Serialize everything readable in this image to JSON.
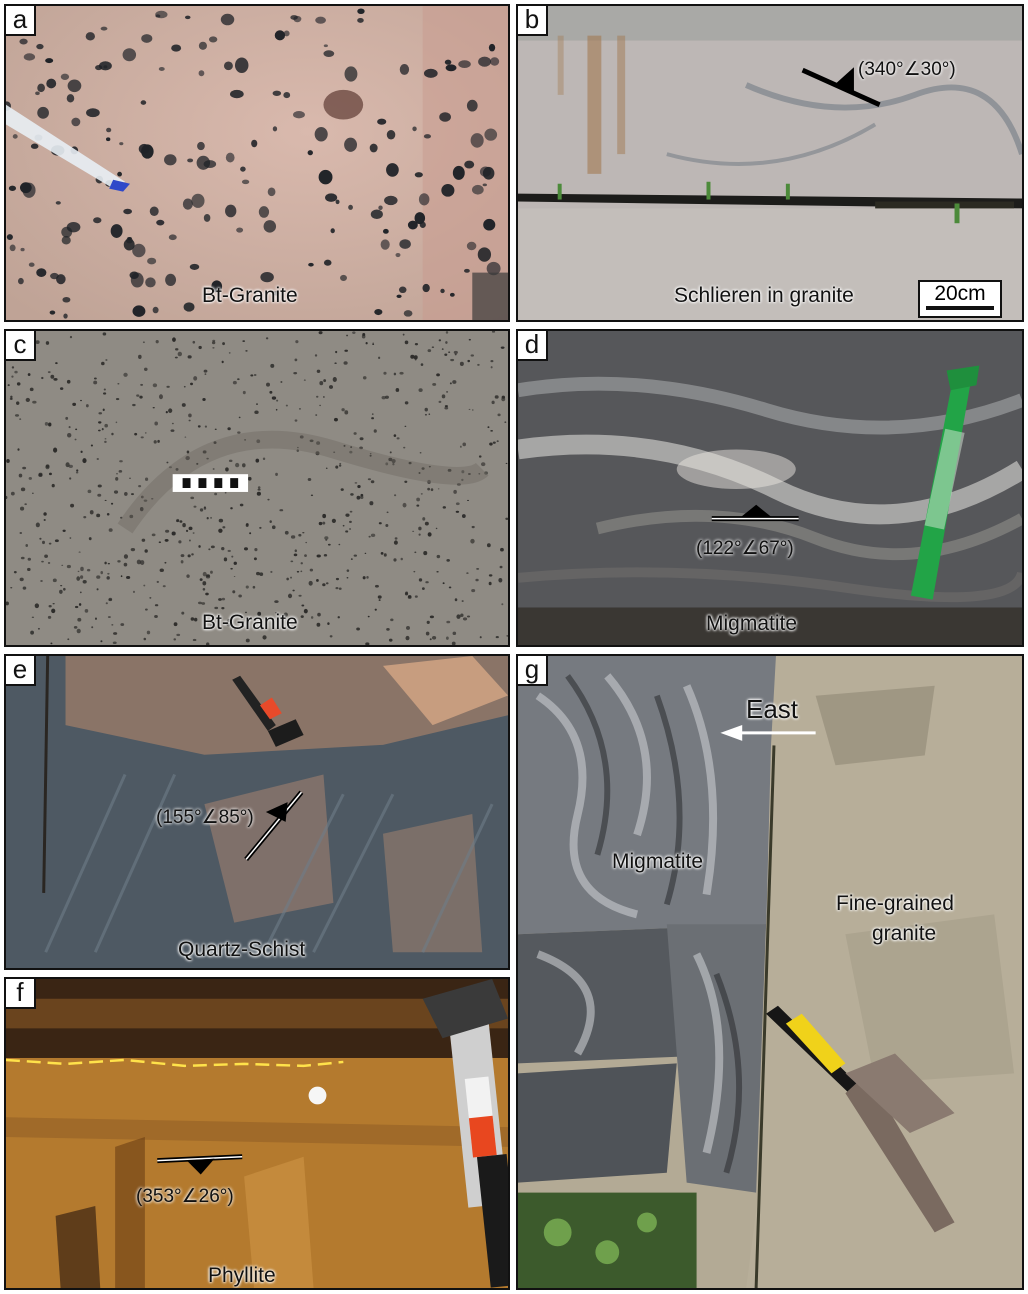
{
  "panels": {
    "a": {
      "label": "a",
      "caption": "Bt-Granite"
    },
    "b": {
      "label": "b",
      "caption": "Schlieren in granite",
      "measurement": "(340°∠30°)",
      "scale": "20cm"
    },
    "c": {
      "label": "c",
      "caption": "Bt-Granite"
    },
    "d": {
      "label": "d",
      "caption": "Migmatite",
      "measurement": "(122°∠67°)"
    },
    "e": {
      "label": "e",
      "caption": "Quartz-Schist",
      "measurement": "(155°∠85°)"
    },
    "f": {
      "label": "f",
      "caption": "Phyllite",
      "measurement": "(353°∠26°)"
    },
    "g": {
      "label": "g",
      "caption_left": "Migmatite",
      "caption_right_1": "Fine-grained",
      "caption_right_2": "granite",
      "direction": "East"
    }
  },
  "colors": {
    "granite_pink": "#c9a99b",
    "schlieren_grey": "#b8b4b2",
    "granite_grey": "#8d8a84",
    "migmatite_dark": "#56575a",
    "schist_blue": "#4f5b66",
    "phyllite_orange": "#b47a2e",
    "fine_granite": "#b3aa95",
    "pen_green": "#22a447",
    "dashed_line": "#ffe24a"
  }
}
